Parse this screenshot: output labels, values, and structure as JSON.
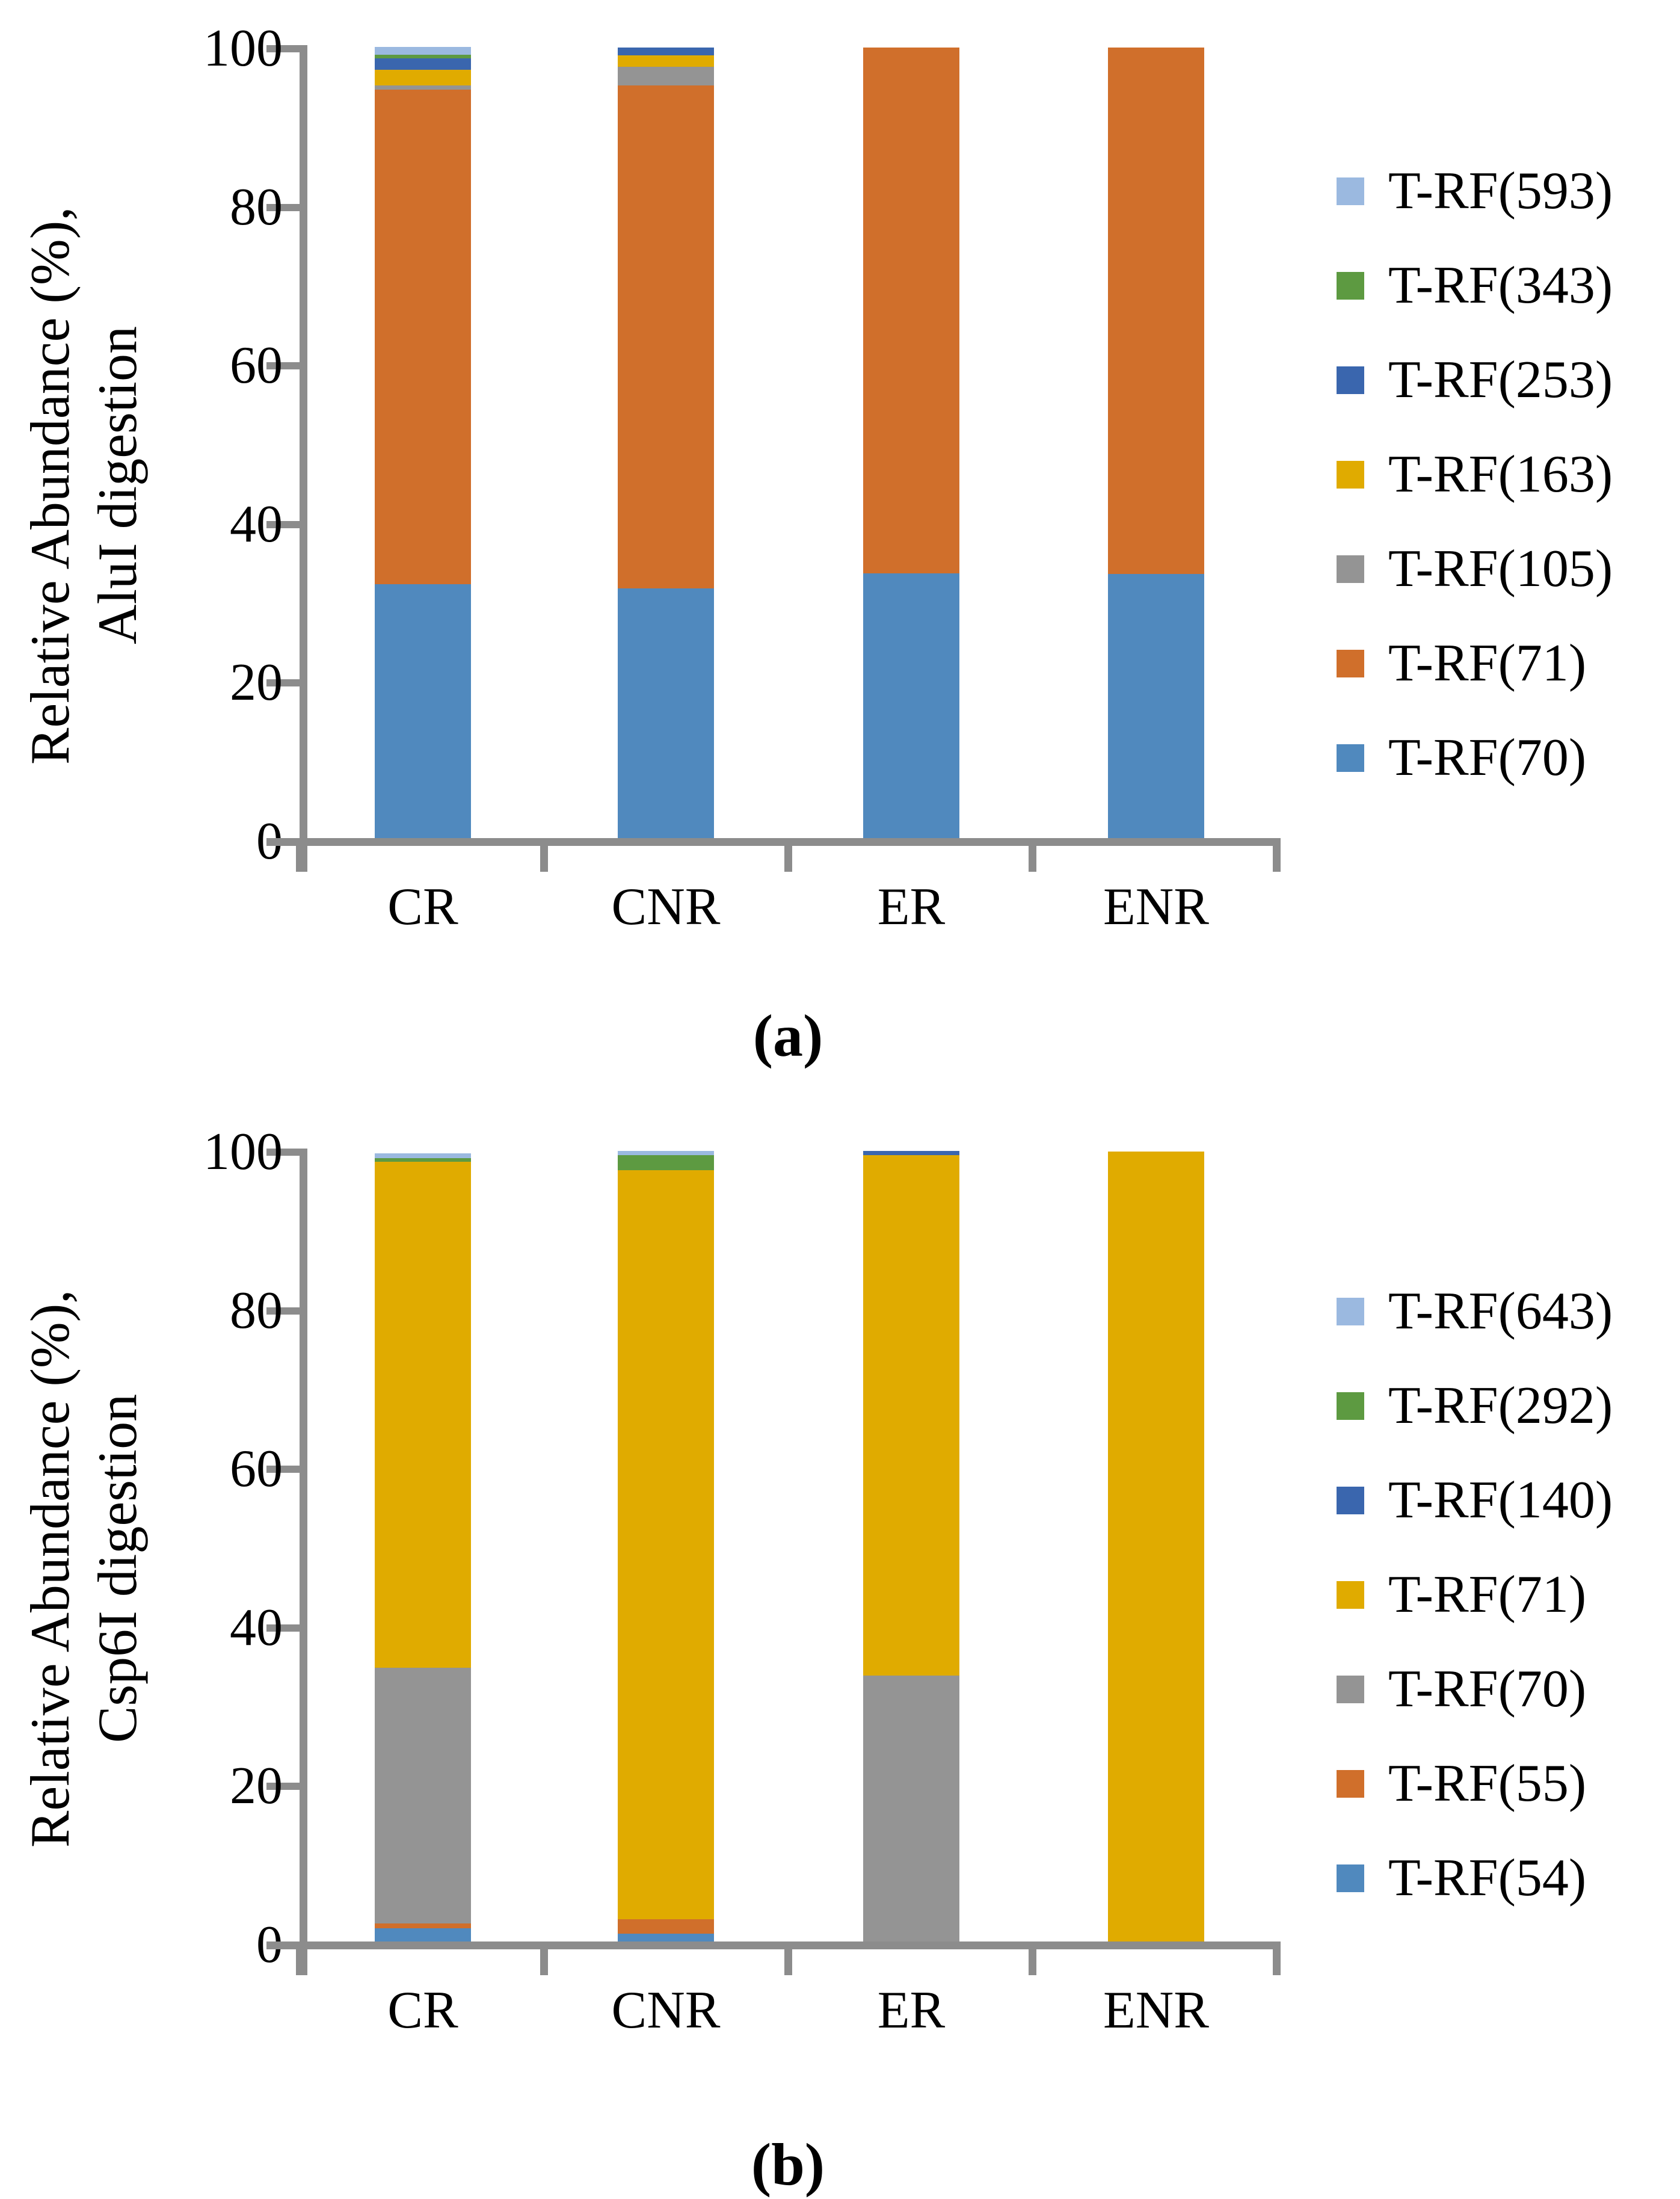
{
  "figure": {
    "captions": {
      "a": "(a)",
      "b": "(b)"
    }
  },
  "chart_data": [
    {
      "id": "a",
      "type": "bar",
      "stacked": true,
      "title": "",
      "ylabel_line1": "Relative Abundance (%),",
      "ylabel_line2": "AluI digestion",
      "caption": "(a)",
      "categories": [
        "CR",
        "CNR",
        "ER",
        "ENR"
      ],
      "ylim": [
        0,
        100
      ],
      "yticks": [
        0,
        20,
        40,
        60,
        80,
        100
      ],
      "grid": false,
      "legend_position": "right",
      "axis_color": "#8C8C8C",
      "series": [
        {
          "name": "T-RF(70)",
          "color": "#5089BE",
          "values": [
            32.0,
            31.5,
            33.4,
            33.3
          ]
        },
        {
          "name": "T-RF(71)",
          "color": "#D06F2B",
          "values": [
            62.4,
            63.4,
            66.3,
            66.4
          ]
        },
        {
          "name": "T-RF(105)",
          "color": "#949494",
          "values": [
            0.5,
            2.4,
            0,
            0
          ]
        },
        {
          "name": "T-RF(163)",
          "color": "#E0AB00",
          "values": [
            2.0,
            1.4,
            0,
            0
          ]
        },
        {
          "name": "T-RF(253)",
          "color": "#3A66AE",
          "values": [
            1.4,
            1.0,
            0,
            0
          ]
        },
        {
          "name": "T-RF(343)",
          "color": "#5D9A41",
          "values": [
            0.5,
            0,
            0,
            0
          ]
        },
        {
          "name": "T-RF(593)",
          "color": "#9BB9E0",
          "values": [
            1.0,
            0,
            0,
            0
          ]
        }
      ]
    },
    {
      "id": "b",
      "type": "bar",
      "stacked": true,
      "title": "",
      "ylabel_line1": "Relative Abundance (%),",
      "ylabel_line2": "Csp6I digestion",
      "caption": "(b)",
      "categories": [
        "CR",
        "CNR",
        "ER",
        "ENR"
      ],
      "ylim": [
        0,
        100
      ],
      "yticks": [
        0,
        20,
        40,
        60,
        80,
        100
      ],
      "grid": false,
      "legend_position": "right",
      "axis_color": "#8C8C8C",
      "series": [
        {
          "name": "T-RF(54)",
          "color": "#5089BE",
          "values": [
            1.7,
            1.0,
            0,
            0
          ]
        },
        {
          "name": "T-RF(55)",
          "color": "#D06F2B",
          "values": [
            0.6,
            1.8,
            0,
            0
          ]
        },
        {
          "name": "T-RF(70)",
          "color": "#949494",
          "values": [
            32.2,
            0,
            33.5,
            0
          ]
        },
        {
          "name": "T-RF(71)",
          "color": "#E0AB00",
          "values": [
            63.8,
            94.5,
            65.7,
            99.6
          ]
        },
        {
          "name": "T-RF(140)",
          "color": "#3A66AE",
          "values": [
            0,
            0,
            0.5,
            0
          ]
        },
        {
          "name": "T-RF(292)",
          "color": "#5D9A41",
          "values": [
            0.5,
            1.9,
            0,
            0
          ]
        },
        {
          "name": "T-RF(643)",
          "color": "#9BB9E0",
          "values": [
            0.6,
            0.5,
            0,
            0
          ]
        }
      ]
    }
  ]
}
